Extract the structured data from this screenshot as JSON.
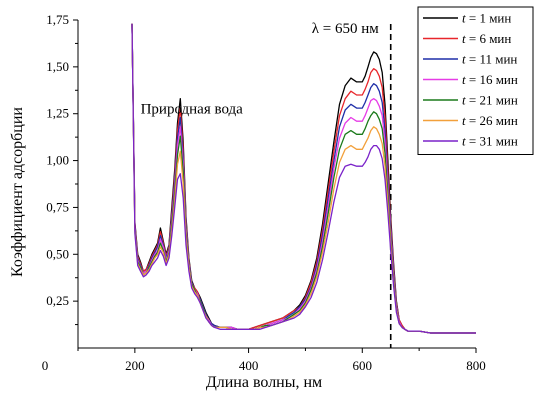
{
  "chart_data": {
    "type": "line",
    "xlabel": "Длина волны, нм",
    "ylabel": "Коэффициент адсорбции",
    "xlim": [
      100,
      800
    ],
    "ylim": [
      0,
      1.75
    ],
    "x_ticks": [
      200,
      400,
      600,
      800
    ],
    "x_tick_labels": [
      "200",
      "400",
      "600",
      "800"
    ],
    "x_origin_label": "0",
    "y_ticks": [
      0.25,
      0.5,
      0.75,
      1.0,
      1.25,
      1.5,
      1.75
    ],
    "y_tick_labels": [
      "0,25",
      "0,50",
      "0,75",
      "1,00",
      "1,25",
      "1,50",
      "1,75"
    ],
    "grid": false,
    "legend_position": "top-right",
    "annotations": [
      {
        "text": "Природная вода",
        "x": 300,
        "y": 1.25
      },
      {
        "text": "λ = 650 нм",
        "x": 570,
        "y": 1.68
      }
    ],
    "reference_lines": [
      {
        "orientation": "vertical",
        "x": 650,
        "style": "dashed"
      }
    ],
    "x": [
      195,
      200,
      205,
      210,
      215,
      220,
      225,
      230,
      235,
      240,
      245,
      250,
      255,
      260,
      265,
      270,
      275,
      280,
      285,
      290,
      295,
      300,
      305,
      310,
      315,
      320,
      325,
      330,
      335,
      340,
      350,
      360,
      370,
      380,
      390,
      400,
      410,
      420,
      430,
      440,
      450,
      460,
      470,
      480,
      490,
      500,
      510,
      520,
      530,
      540,
      550,
      560,
      570,
      580,
      590,
      600,
      605,
      610,
      615,
      620,
      625,
      630,
      635,
      640,
      645,
      650,
      655,
      660,
      665,
      670,
      675,
      680,
      690,
      700,
      720,
      740,
      760,
      780,
      800
    ],
    "series": [
      {
        "name": "t = 1 мин",
        "color": "#000000",
        "values": [
          1.73,
          0.67,
          0.5,
          0.46,
          0.41,
          0.42,
          0.46,
          0.5,
          0.53,
          0.56,
          0.64,
          0.57,
          0.5,
          0.55,
          0.75,
          0.95,
          1.2,
          1.33,
          1.1,
          0.7,
          0.48,
          0.36,
          0.32,
          0.3,
          0.27,
          0.23,
          0.19,
          0.16,
          0.13,
          0.12,
          0.11,
          0.11,
          0.11,
          0.1,
          0.1,
          0.1,
          0.11,
          0.12,
          0.13,
          0.14,
          0.15,
          0.16,
          0.18,
          0.2,
          0.23,
          0.28,
          0.36,
          0.48,
          0.66,
          0.88,
          1.1,
          1.3,
          1.4,
          1.44,
          1.42,
          1.42,
          1.45,
          1.5,
          1.55,
          1.58,
          1.57,
          1.54,
          1.47,
          1.3,
          1.0,
          0.7,
          0.45,
          0.25,
          0.15,
          0.12,
          0.1,
          0.09,
          0.09,
          0.09,
          0.08,
          0.08,
          0.08,
          0.08,
          0.08
        ]
      },
      {
        "name": "t = 6 мин",
        "color": "#e8262b",
        "values": [
          1.73,
          0.66,
          0.49,
          0.45,
          0.41,
          0.42,
          0.45,
          0.49,
          0.52,
          0.55,
          0.62,
          0.56,
          0.49,
          0.54,
          0.72,
          0.92,
          1.16,
          1.28,
          1.06,
          0.68,
          0.47,
          0.35,
          0.32,
          0.3,
          0.26,
          0.22,
          0.18,
          0.15,
          0.13,
          0.12,
          0.11,
          0.11,
          0.11,
          0.1,
          0.1,
          0.1,
          0.11,
          0.12,
          0.13,
          0.14,
          0.15,
          0.16,
          0.18,
          0.2,
          0.22,
          0.27,
          0.35,
          0.46,
          0.63,
          0.84,
          1.05,
          1.24,
          1.33,
          1.37,
          1.35,
          1.35,
          1.38,
          1.42,
          1.47,
          1.49,
          1.48,
          1.45,
          1.39,
          1.23,
          0.95,
          0.67,
          0.43,
          0.24,
          0.15,
          0.12,
          0.1,
          0.09,
          0.09,
          0.09,
          0.08,
          0.08,
          0.08,
          0.08,
          0.08
        ]
      },
      {
        "name": "t = 11 мин",
        "color": "#1f2fa8",
        "values": [
          1.73,
          0.65,
          0.48,
          0.44,
          0.4,
          0.41,
          0.44,
          0.48,
          0.51,
          0.54,
          0.6,
          0.55,
          0.48,
          0.53,
          0.7,
          0.89,
          1.12,
          1.23,
          1.02,
          0.66,
          0.46,
          0.35,
          0.31,
          0.29,
          0.26,
          0.22,
          0.18,
          0.15,
          0.13,
          0.12,
          0.11,
          0.11,
          0.11,
          0.1,
          0.1,
          0.1,
          0.1,
          0.11,
          0.12,
          0.13,
          0.14,
          0.15,
          0.17,
          0.19,
          0.22,
          0.26,
          0.33,
          0.44,
          0.6,
          0.8,
          1.0,
          1.18,
          1.27,
          1.3,
          1.28,
          1.28,
          1.31,
          1.35,
          1.39,
          1.41,
          1.4,
          1.37,
          1.31,
          1.16,
          0.9,
          0.64,
          0.41,
          0.23,
          0.14,
          0.11,
          0.1,
          0.09,
          0.09,
          0.09,
          0.08,
          0.08,
          0.08,
          0.08,
          0.08
        ]
      },
      {
        "name": "t = 16 мин",
        "color": "#e63ce6",
        "values": [
          1.73,
          0.64,
          0.47,
          0.43,
          0.4,
          0.41,
          0.43,
          0.47,
          0.5,
          0.52,
          0.58,
          0.54,
          0.47,
          0.52,
          0.68,
          0.86,
          1.08,
          1.18,
          0.98,
          0.64,
          0.45,
          0.34,
          0.31,
          0.29,
          0.25,
          0.21,
          0.17,
          0.15,
          0.12,
          0.11,
          0.11,
          0.11,
          0.11,
          0.1,
          0.1,
          0.1,
          0.1,
          0.11,
          0.12,
          0.13,
          0.14,
          0.15,
          0.16,
          0.18,
          0.21,
          0.25,
          0.32,
          0.42,
          0.57,
          0.76,
          0.96,
          1.12,
          1.2,
          1.23,
          1.21,
          1.21,
          1.24,
          1.28,
          1.32,
          1.33,
          1.32,
          1.29,
          1.24,
          1.1,
          0.86,
          0.61,
          0.39,
          0.22,
          0.14,
          0.11,
          0.1,
          0.09,
          0.09,
          0.09,
          0.08,
          0.08,
          0.08,
          0.08,
          0.08
        ]
      },
      {
        "name": "t = 21 мин",
        "color": "#1b7a1b",
        "values": [
          1.73,
          0.63,
          0.46,
          0.43,
          0.39,
          0.4,
          0.43,
          0.46,
          0.49,
          0.51,
          0.56,
          0.52,
          0.46,
          0.51,
          0.66,
          0.83,
          1.03,
          1.13,
          0.94,
          0.62,
          0.44,
          0.34,
          0.31,
          0.28,
          0.25,
          0.21,
          0.17,
          0.14,
          0.12,
          0.11,
          0.11,
          0.11,
          0.1,
          0.1,
          0.1,
          0.1,
          0.1,
          0.11,
          0.12,
          0.12,
          0.13,
          0.14,
          0.16,
          0.18,
          0.2,
          0.24,
          0.31,
          0.4,
          0.54,
          0.72,
          0.91,
          1.06,
          1.14,
          1.16,
          1.14,
          1.14,
          1.17,
          1.21,
          1.24,
          1.26,
          1.25,
          1.22,
          1.17,
          1.04,
          0.82,
          0.58,
          0.37,
          0.21,
          0.13,
          0.11,
          0.1,
          0.09,
          0.09,
          0.09,
          0.08,
          0.08,
          0.08,
          0.08,
          0.08
        ]
      },
      {
        "name": "t = 26 мин",
        "color": "#f2a03b",
        "values": [
          1.73,
          0.62,
          0.45,
          0.42,
          0.39,
          0.4,
          0.42,
          0.45,
          0.48,
          0.5,
          0.54,
          0.51,
          0.45,
          0.5,
          0.63,
          0.79,
          0.98,
          1.05,
          0.88,
          0.59,
          0.43,
          0.33,
          0.3,
          0.28,
          0.24,
          0.2,
          0.17,
          0.14,
          0.12,
          0.11,
          0.11,
          0.11,
          0.1,
          0.1,
          0.1,
          0.1,
          0.1,
          0.11,
          0.11,
          0.12,
          0.13,
          0.14,
          0.15,
          0.17,
          0.19,
          0.23,
          0.29,
          0.38,
          0.51,
          0.67,
          0.85,
          0.99,
          1.06,
          1.08,
          1.06,
          1.06,
          1.09,
          1.12,
          1.16,
          1.18,
          1.17,
          1.14,
          1.09,
          0.97,
          0.77,
          0.55,
          0.35,
          0.2,
          0.13,
          0.11,
          0.1,
          0.09,
          0.09,
          0.09,
          0.08,
          0.08,
          0.08,
          0.08,
          0.08
        ]
      },
      {
        "name": "t = 31 мин",
        "color": "#7a22c9",
        "values": [
          1.73,
          0.61,
          0.44,
          0.41,
          0.38,
          0.39,
          0.41,
          0.44,
          0.46,
          0.48,
          0.52,
          0.49,
          0.44,
          0.48,
          0.6,
          0.75,
          0.9,
          0.93,
          0.8,
          0.55,
          0.41,
          0.32,
          0.29,
          0.27,
          0.24,
          0.2,
          0.16,
          0.14,
          0.12,
          0.11,
          0.1,
          0.1,
          0.1,
          0.1,
          0.1,
          0.1,
          0.1,
          0.1,
          0.11,
          0.12,
          0.13,
          0.14,
          0.15,
          0.16,
          0.18,
          0.22,
          0.27,
          0.35,
          0.47,
          0.62,
          0.78,
          0.91,
          0.97,
          0.98,
          0.97,
          0.97,
          0.99,
          1.02,
          1.06,
          1.08,
          1.08,
          1.06,
          1.01,
          0.9,
          0.72,
          0.52,
          0.33,
          0.19,
          0.13,
          0.11,
          0.1,
          0.09,
          0.09,
          0.09,
          0.08,
          0.08,
          0.08,
          0.08,
          0.08
        ]
      }
    ]
  }
}
